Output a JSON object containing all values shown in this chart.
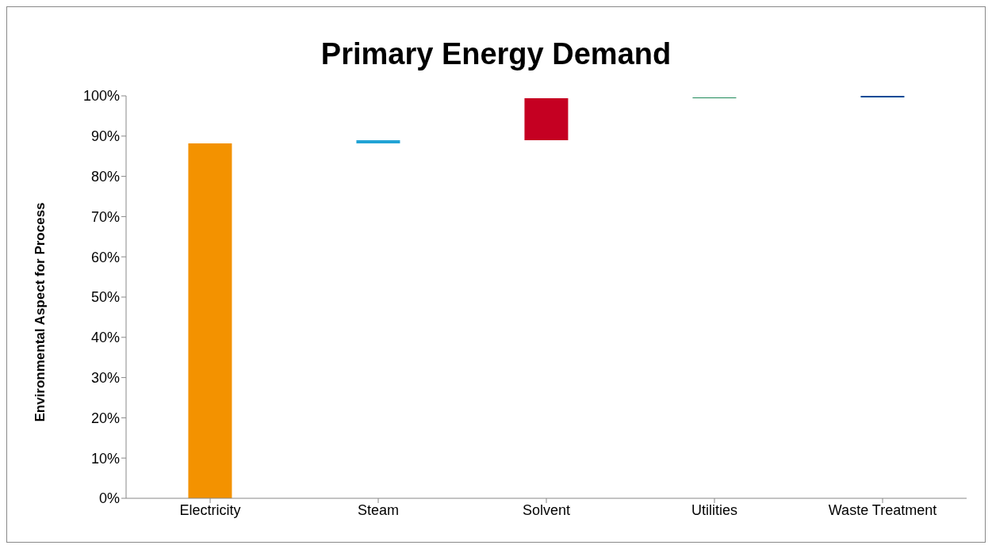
{
  "chart_data": {
    "type": "bar",
    "title": "Primary Energy Demand",
    "ylabel": "Environmental Aspect for Process",
    "categories": [
      "Electricity",
      "Steam",
      "Solvent",
      "Utilities",
      "Waste Treatment"
    ],
    "values": [
      88.2,
      0.8,
      10.4,
      0.2,
      0.4
    ],
    "base": [
      0,
      88.2,
      89,
      99.4,
      99.6
    ],
    "colors": [
      "#f39200",
      "#22a3d5",
      "#c50022",
      "#1f8a5a",
      "#004a96"
    ],
    "ylim": [
      0,
      100
    ],
    "yticks": [
      {
        "value": 0,
        "label": "0%"
      },
      {
        "value": 10,
        "label": "10%"
      },
      {
        "value": 20,
        "label": "20%"
      },
      {
        "value": 30,
        "label": "30%"
      },
      {
        "value": 40,
        "label": "40%"
      },
      {
        "value": 50,
        "label": "50%"
      },
      {
        "value": 60,
        "label": "60%"
      },
      {
        "value": 70,
        "label": "70%"
      },
      {
        "value": 80,
        "label": "80%"
      },
      {
        "value": 90,
        "label": "90%"
      },
      {
        "value": 100,
        "label": "100%"
      }
    ],
    "grid": false,
    "legend": false
  }
}
